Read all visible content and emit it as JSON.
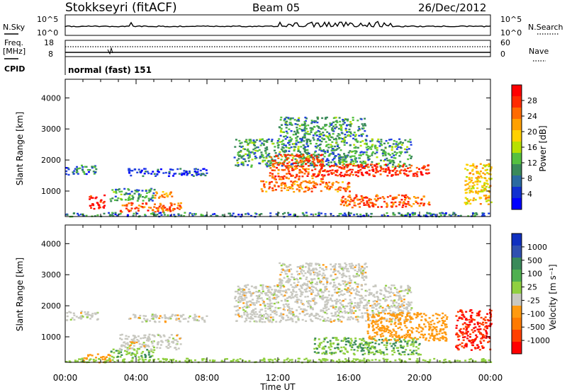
{
  "header": {
    "station": "Stokkseyri (fitACF)",
    "beam": "Beam 05",
    "date": "26/Dec/2012"
  },
  "top_panels": {
    "nsky_label": "N.Sky",
    "nsky_ticks": [
      "10^5",
      "10^0"
    ],
    "nsearch_label": "N.Search",
    "nsearch_ticks": [
      "10^5",
      "10^0"
    ],
    "freq_label_1": "Freq.",
    "freq_label_2": "[MHz]",
    "freq_ticks": [
      "18",
      "8"
    ],
    "nave_label": "Nave",
    "nave_ticks": [
      "60",
      "0"
    ],
    "cpid_label": "CPID",
    "cpid_value": "normal (fast) 151"
  },
  "chart_data": [
    {
      "type": "heatmap",
      "name": "power-panel",
      "xlabel": "",
      "ylabel": "Slant Range [km]",
      "x_range": [
        0,
        24
      ],
      "y_range": [
        180,
        4600
      ],
      "yticks": [
        "4000",
        "3000",
        "2000",
        "1000"
      ],
      "colorbar": {
        "label": "Power [dB]",
        "ticks": [
          "28",
          "24",
          "20",
          "16",
          "12",
          "8",
          "4"
        ],
        "colors": [
          "#ff0000",
          "#ff2a00",
          "#ff6a00",
          "#ffa000",
          "#ffd000",
          "#b8e000",
          "#55c040",
          "#3a8a5a",
          "#2a6aa0",
          "#1030d0",
          "#0000ff"
        ]
      },
      "regions": [
        {
          "t0": 0.0,
          "t1": 1.8,
          "r0": 1550,
          "r1": 1850,
          "value": 8
        },
        {
          "t0": 1.3,
          "t1": 2.2,
          "r0": 450,
          "r1": 900,
          "value": 28
        },
        {
          "t0": 2.5,
          "t1": 5.0,
          "r0": 700,
          "r1": 1100,
          "value": 10
        },
        {
          "t0": 3.0,
          "t1": 6.5,
          "r0": 350,
          "r1": 650,
          "value": 24
        },
        {
          "t0": 5.0,
          "t1": 6.0,
          "r0": 800,
          "r1": 1000,
          "value": 20
        },
        {
          "t0": 3.5,
          "t1": 8.0,
          "r0": 1500,
          "r1": 1750,
          "value": 6
        },
        {
          "t0": 0.0,
          "t1": 24.0,
          "r0": 200,
          "r1": 330,
          "value": 8
        },
        {
          "t0": 9.5,
          "t1": 19.5,
          "r0": 1800,
          "r1": 2700,
          "value": 10
        },
        {
          "t0": 11.5,
          "t1": 14.5,
          "r0": 1400,
          "r1": 2200,
          "value": 24
        },
        {
          "t0": 11.0,
          "t1": 16.0,
          "r0": 1000,
          "r1": 1350,
          "value": 22
        },
        {
          "t0": 14.0,
          "t1": 20.5,
          "r0": 1500,
          "r1": 1900,
          "value": 26
        },
        {
          "t0": 15.5,
          "t1": 20.5,
          "r0": 500,
          "r1": 900,
          "value": 24
        },
        {
          "t0": 12.0,
          "t1": 17.0,
          "r0": 2700,
          "r1": 3400,
          "value": 10
        },
        {
          "t0": 22.5,
          "t1": 24.0,
          "r0": 600,
          "r1": 1900,
          "value": 18
        }
      ]
    },
    {
      "type": "heatmap",
      "name": "velocity-panel",
      "xlabel": "Time UT",
      "ylabel": "Slant Range [km]",
      "x_range": [
        0,
        24
      ],
      "y_range": [
        180,
        4600
      ],
      "yticks": [
        "4000",
        "3000",
        "2000",
        "1000"
      ],
      "xticks": [
        "00:00",
        "04:00",
        "08:00",
        "12:00",
        "16:00",
        "20:00",
        "00:00"
      ],
      "colorbar": {
        "label": "Velocity [m s⁻¹]",
        "ticks": [
          "1000",
          "500",
          "100",
          "25",
          "-25",
          "-100",
          "-500",
          "-1000"
        ],
        "colors": [
          "#1030c0",
          "#3050b0",
          "#3a8a5a",
          "#50b050",
          "#90d040",
          "#c8c8c0",
          "#ff9a10",
          "#ff7a00",
          "#ff4000",
          "#ff0000"
        ]
      },
      "regions": [
        {
          "t0": 0.0,
          "t1": 1.8,
          "r0": 1550,
          "r1": 1850,
          "value": 0
        },
        {
          "t0": 1.0,
          "t1": 2.5,
          "r0": 200,
          "r1": 500,
          "value": -100
        },
        {
          "t0": 2.5,
          "t1": 5.0,
          "r0": 350,
          "r1": 650,
          "value": 150
        },
        {
          "t0": 3.0,
          "t1": 6.5,
          "r0": 600,
          "r1": 1100,
          "value": 0
        },
        {
          "t0": 3.5,
          "t1": 8.0,
          "r0": 1500,
          "r1": 1750,
          "value": 0
        },
        {
          "t0": 9.5,
          "t1": 19.5,
          "r0": 1500,
          "r1": 2700,
          "value": 0
        },
        {
          "t0": 12.0,
          "t1": 17.0,
          "r0": 2700,
          "r1": 3400,
          "value": 0
        },
        {
          "t0": 14.0,
          "t1": 20.0,
          "r0": 450,
          "r1": 1000,
          "value": 150
        },
        {
          "t0": 17.0,
          "t1": 21.5,
          "r0": 900,
          "r1": 1800,
          "value": -150
        },
        {
          "t0": 22.0,
          "t1": 24.0,
          "r0": 600,
          "r1": 1900,
          "value": -600
        },
        {
          "t0": 0.0,
          "t1": 24.0,
          "r0": 200,
          "r1": 330,
          "value": 60
        }
      ]
    }
  ]
}
